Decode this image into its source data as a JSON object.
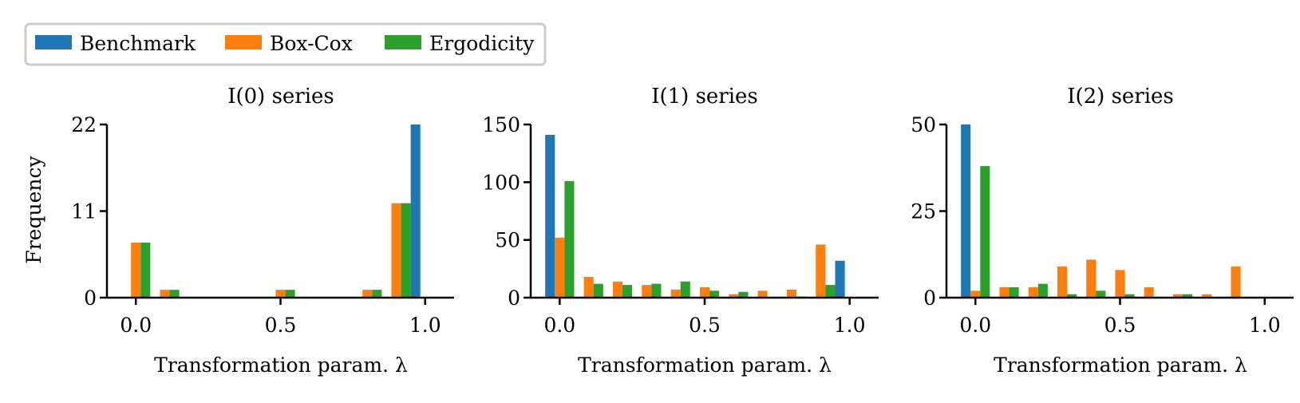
{
  "legend": {
    "placement": "top-left",
    "entries": [
      {
        "label": "Benchmark",
        "color": "#1f77b4"
      },
      {
        "label": "Box-Cox",
        "color": "#ff7f0e"
      },
      {
        "label": "Ergodicity",
        "color": "#2ca02c"
      }
    ]
  },
  "chart_data": [
    {
      "type": "bar",
      "title": "I(0) series",
      "xlabel": "Transformation param. λ",
      "ylabel": "Frequency",
      "xlim": [
        -0.1,
        1.1
      ],
      "ylim": [
        0,
        22
      ],
      "xticks": [
        "0.0",
        "0.5",
        "1.0"
      ],
      "yticks": [
        "0",
        "11",
        "22"
      ],
      "categories": [
        "0.0",
        "0.1",
        "0.2",
        "0.3",
        "0.4",
        "0.5",
        "0.6",
        "0.7",
        "0.8",
        "0.9",
        "1.0"
      ],
      "series": [
        {
          "name": "Benchmark",
          "values": [
            0,
            0,
            0,
            0,
            0,
            0,
            0,
            0,
            0,
            0,
            22
          ]
        },
        {
          "name": "Box-Cox",
          "values": [
            7,
            1,
            0,
            0,
            0,
            1,
            0,
            0,
            1,
            12,
            0
          ]
        },
        {
          "name": "Ergodicity",
          "values": [
            7,
            1,
            0,
            0,
            0,
            1,
            0,
            0,
            1,
            12,
            0
          ]
        }
      ]
    },
    {
      "type": "bar",
      "title": "I(1) series",
      "xlabel": "Transformation param. λ",
      "ylabel": "",
      "xlim": [
        -0.1,
        1.1
      ],
      "ylim": [
        0,
        150
      ],
      "xticks": [
        "0.0",
        "0.5",
        "1.0"
      ],
      "yticks": [
        "0",
        "50",
        "100",
        "150"
      ],
      "categories": [
        "0.0",
        "0.1",
        "0.2",
        "0.3",
        "0.4",
        "0.5",
        "0.6",
        "0.7",
        "0.8",
        "0.9",
        "1.0"
      ],
      "series": [
        {
          "name": "Benchmark",
          "values": [
            141,
            0,
            0,
            0,
            0,
            0,
            0,
            0,
            0,
            0,
            32
          ]
        },
        {
          "name": "Box-Cox",
          "values": [
            52,
            18,
            14,
            11,
            7,
            9,
            3,
            6,
            7,
            46,
            0
          ]
        },
        {
          "name": "Ergodicity",
          "values": [
            101,
            12,
            11,
            12,
            14,
            6,
            5,
            0,
            1,
            11,
            0
          ]
        }
      ]
    },
    {
      "type": "bar",
      "title": "I(2) series",
      "xlabel": "Transformation param. λ",
      "ylabel": "",
      "xlim": [
        -0.1,
        1.1
      ],
      "ylim": [
        0,
        50
      ],
      "xticks": [
        "0.0",
        "0.5",
        "1.0"
      ],
      "yticks": [
        "0",
        "25",
        "50"
      ],
      "categories": [
        "0.0",
        "0.1",
        "0.2",
        "0.3",
        "0.4",
        "0.5",
        "0.6",
        "0.7",
        "0.8",
        "0.9",
        "1.0"
      ],
      "series": [
        {
          "name": "Benchmark",
          "values": [
            50,
            0,
            0,
            0,
            0,
            0,
            0,
            0,
            0,
            0,
            0
          ]
        },
        {
          "name": "Box-Cox",
          "values": [
            2,
            3,
            3,
            9,
            11,
            8,
            3,
            1,
            1,
            9,
            0
          ]
        },
        {
          "name": "Ergodicity",
          "values": [
            38,
            3,
            4,
            1,
            2,
            1,
            0,
            1,
            0,
            0,
            0
          ]
        }
      ]
    }
  ]
}
